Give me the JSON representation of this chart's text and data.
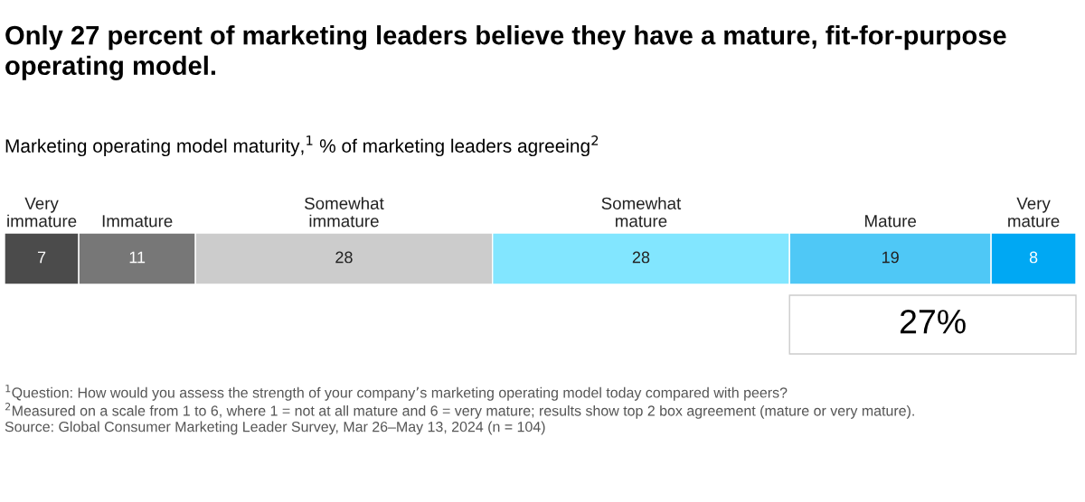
{
  "chart_data": {
    "type": "bar",
    "orientation": "horizontal",
    "stacked": true,
    "title": "Only 27 percent of marketing leaders believe they have a mature, fit-for-purpose operating model.",
    "subtitle": "Marketing operating model maturity,$^{1}$ % of marketing leaders agreeing$^{2}$",
    "categories": [
      null
    ],
    "series": [
      {
        "name": "Very\nimmature",
        "color": "#4b4b4b",
        "values": [
          7
        ]
      },
      {
        "name": "Immature",
        "color": "#777777",
        "values": [
          11
        ]
      },
      {
        "name": "Somewhat\nimmature",
        "color": "#cccccc",
        "values": [
          28
        ]
      },
      {
        "name": "Somewhat\nmature",
        "color": "#82e6ff",
        "values": [
          28
        ]
      },
      {
        "name": "Mature",
        "color": "#4fc8f6",
        "values": [
          19
        ]
      },
      {
        "name": "Very\nmature",
        "color": "#00a8f3",
        "values": [
          8
        ]
      }
    ],
    "data_labels": true,
    "tick_labels": false,
    "legend": false,
    "annotations": [
      "27%",
      "$^{1}$Question: How would you assess the strength of your company’s marketing operating model today compared with peers?",
      "$^{2}$Measured on a scale from 1 to 6, where 1 = not at all mature and 6 = very mature; results show top 2 box agreement (mature or very mature).",
      "Source: Global Consumer Marketing Leader Survey, Mar 26–May 13, 2024 (n = 104)"
    ]
  }
}
